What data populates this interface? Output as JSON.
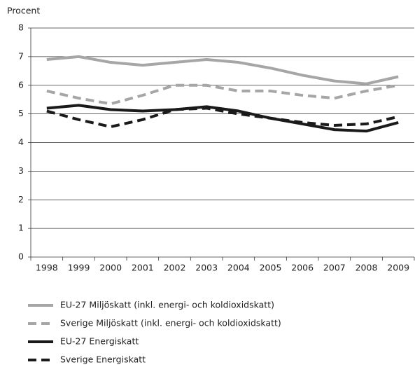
{
  "chart_data": {
    "type": "line",
    "ylabel": "Procent",
    "categories": [
      "1998",
      "1999",
      "2000",
      "2001",
      "2002",
      "2003",
      "2004",
      "2005",
      "2006",
      "2007",
      "2008",
      "2009"
    ],
    "series": [
      {
        "name": "EU-27 Miljöskatt (inkl. energi- och koldioxidskatt)",
        "color": "#a6a6a6",
        "dashed": false,
        "values": [
          6.9,
          7.0,
          6.8,
          6.7,
          6.8,
          6.9,
          6.8,
          6.6,
          6.35,
          6.15,
          6.05,
          6.3
        ]
      },
      {
        "name": "Sverige Miljöskatt (inkl. energi- och koldioxidskatt)",
        "color": "#a6a6a6",
        "dashed": true,
        "values": [
          5.8,
          5.55,
          5.35,
          5.65,
          6.0,
          6.0,
          5.8,
          5.8,
          5.65,
          5.55,
          5.8,
          6.0
        ]
      },
      {
        "name": "EU-27 Energiskatt",
        "color": "#1a1a1a",
        "dashed": false,
        "values": [
          5.2,
          5.3,
          5.15,
          5.1,
          5.15,
          5.25,
          5.1,
          4.85,
          4.65,
          4.45,
          4.4,
          4.7
        ]
      },
      {
        "name": "Sverige Energiskatt",
        "color": "#1a1a1a",
        "dashed": true,
        "values": [
          5.1,
          4.8,
          4.55,
          4.8,
          5.15,
          5.2,
          5.0,
          4.85,
          4.7,
          4.6,
          4.65,
          4.9
        ]
      }
    ],
    "ylim": [
      0,
      8
    ],
    "yticks": [
      0,
      1,
      2,
      3,
      4,
      5,
      6,
      7,
      8
    ],
    "grid": true,
    "legend": "bottom"
  }
}
